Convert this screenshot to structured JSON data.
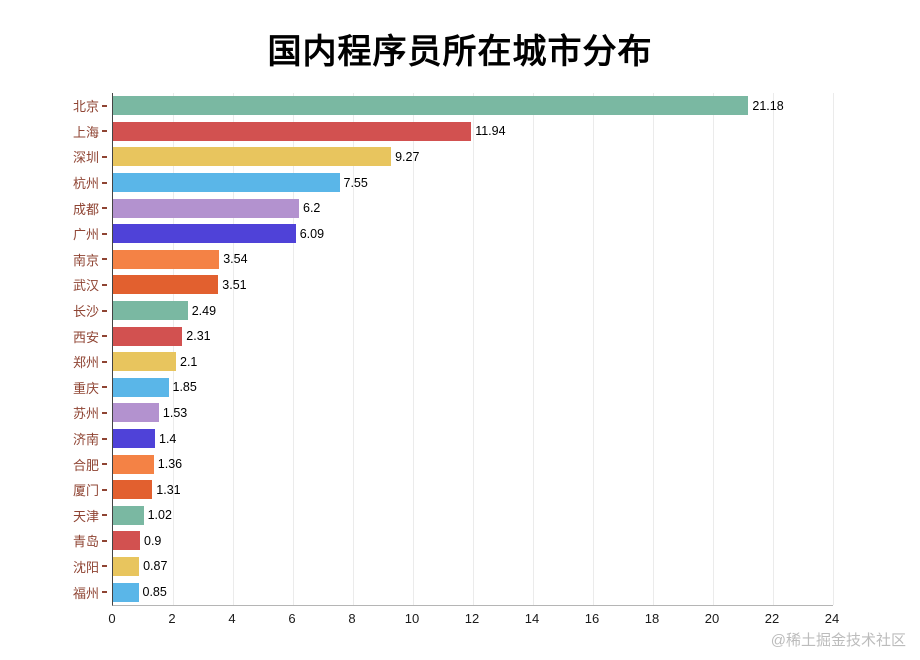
{
  "page": {
    "watermark": "@稀土掘金技术社区"
  },
  "chart_data": {
    "type": "bar",
    "orientation": "horizontal",
    "title": "国内程序员所在城市分布",
    "categories": [
      "北京",
      "上海",
      "深圳",
      "杭州",
      "成都",
      "广州",
      "南京",
      "武汉",
      "长沙",
      "西安",
      "郑州",
      "重庆",
      "苏州",
      "济南",
      "合肥",
      "厦门",
      "天津",
      "青岛",
      "沈阳",
      "福州"
    ],
    "values": [
      21.18,
      11.94,
      9.27,
      7.55,
      6.2,
      6.09,
      3.54,
      3.51,
      2.49,
      2.31,
      2.1,
      1.85,
      1.53,
      1.4,
      1.36,
      1.31,
      1.02,
      0.9,
      0.87,
      0.85
    ],
    "value_labels": [
      "21.18",
      "11.94",
      "9.27",
      "7.55",
      "6.2",
      "6.09",
      "3.54",
      "3.51",
      "2.49",
      "2.31",
      "2.1",
      "1.85",
      "1.53",
      "1.4",
      "1.36",
      "1.31",
      "1.02",
      "0.9",
      "0.87",
      "0.85"
    ],
    "x_ticks": [
      0,
      2,
      4,
      6,
      8,
      10,
      12,
      14,
      16,
      18,
      20,
      22,
      24
    ],
    "xlim": [
      0,
      24
    ],
    "palette": [
      "#7ab8a2",
      "#d25150",
      "#e8c55e",
      "#5ab6e8",
      "#b392cf",
      "#4f42d8",
      "#f48245",
      "#e2602f"
    ],
    "y_label_color": "#8f4433",
    "grid": true,
    "legend_position": "none"
  }
}
